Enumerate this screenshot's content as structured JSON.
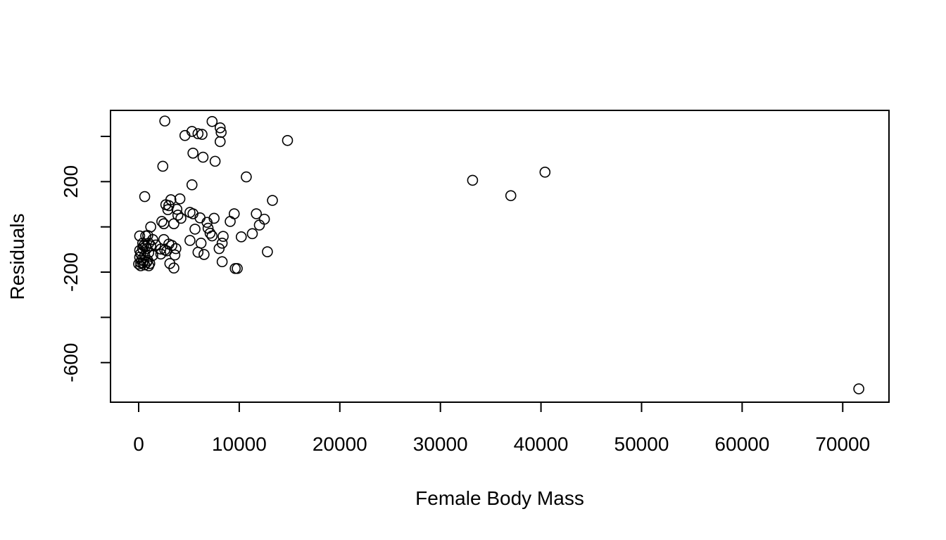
{
  "chart_data": {
    "type": "scatter",
    "title": "",
    "xlabel": "Female Body Mass",
    "ylabel": "Residuals",
    "xlim": [
      -2800,
      74600
    ],
    "ylim": [
      -775,
      515
    ],
    "x_ticks": [
      0,
      10000,
      20000,
      30000,
      40000,
      50000,
      60000,
      70000
    ],
    "x_tick_labels": [
      "0",
      "10000",
      "20000",
      "30000",
      "40000",
      "50000",
      "60000",
      "70000"
    ],
    "y_ticks": [
      -600,
      -400,
      -200,
      0,
      200,
      400
    ],
    "y_tick_labels": [
      "-600",
      "",
      "-200",
      "",
      "200",
      ""
    ],
    "grid": false,
    "legend": "none",
    "marker": "open-circle",
    "colors": {
      "marker": "#000000",
      "axis": "#000000",
      "background": "#ffffff"
    },
    "points": [
      [
        2600,
        468
      ],
      [
        7300,
        466
      ],
      [
        8100,
        438
      ],
      [
        5300,
        422
      ],
      [
        8200,
        418
      ],
      [
        5900,
        412
      ],
      [
        6300,
        409
      ],
      [
        4600,
        404
      ],
      [
        14800,
        382
      ],
      [
        8100,
        377
      ],
      [
        5400,
        326
      ],
      [
        6400,
        308
      ],
      [
        7600,
        290
      ],
      [
        2400,
        268
      ],
      [
        10700,
        221
      ],
      [
        5300,
        186
      ],
      [
        600,
        134
      ],
      [
        4100,
        124
      ],
      [
        13300,
        117
      ],
      [
        3200,
        120
      ],
      [
        2700,
        98
      ],
      [
        3000,
        94
      ],
      [
        2900,
        76
      ],
      [
        3800,
        78
      ],
      [
        5100,
        64
      ],
      [
        5400,
        58
      ],
      [
        9500,
        58
      ],
      [
        11700,
        58
      ],
      [
        3900,
        52
      ],
      [
        4200,
        38
      ],
      [
        6100,
        40
      ],
      [
        7500,
        38
      ],
      [
        12500,
        34
      ],
      [
        2300,
        24
      ],
      [
        9100,
        24
      ],
      [
        6800,
        20
      ],
      [
        2500,
        14
      ],
      [
        3500,
        14
      ],
      [
        12000,
        8
      ],
      [
        1200,
        0
      ],
      [
        5600,
        -10
      ],
      [
        6900,
        -6
      ],
      [
        7100,
        -28
      ],
      [
        11300,
        -30
      ],
      [
        100,
        -40
      ],
      [
        700,
        -40
      ],
      [
        900,
        -38
      ],
      [
        7300,
        -40
      ],
      [
        10200,
        -44
      ],
      [
        8400,
        -42
      ],
      [
        2500,
        -56
      ],
      [
        1400,
        -56
      ],
      [
        5100,
        -60
      ],
      [
        400,
        -72
      ],
      [
        1000,
        -72
      ],
      [
        3000,
        -76
      ],
      [
        6200,
        -72
      ],
      [
        8300,
        -72
      ],
      [
        500,
        -84
      ],
      [
        700,
        -86
      ],
      [
        1200,
        -84
      ],
      [
        1700,
        -80
      ],
      [
        3300,
        -82
      ],
      [
        8000,
        -96
      ],
      [
        3700,
        -96
      ],
      [
        400,
        -96
      ],
      [
        800,
        -96
      ],
      [
        2200,
        -98
      ],
      [
        100,
        -104
      ],
      [
        2800,
        -106
      ],
      [
        12800,
        -110
      ],
      [
        2600,
        -102
      ],
      [
        5900,
        -112
      ],
      [
        200,
        -118
      ],
      [
        1000,
        -114
      ],
      [
        600,
        -126
      ],
      [
        2200,
        -120
      ],
      [
        3600,
        -124
      ],
      [
        6500,
        -122
      ],
      [
        1400,
        -126
      ],
      [
        100,
        -134
      ],
      [
        300,
        -146
      ],
      [
        500,
        -150
      ],
      [
        900,
        -148
      ],
      [
        200,
        -158
      ],
      [
        400,
        -160
      ],
      [
        800,
        -156
      ],
      [
        1100,
        -162
      ],
      [
        3100,
        -162
      ],
      [
        8300,
        -154
      ],
      [
        0,
        -164
      ],
      [
        200,
        -172
      ],
      [
        600,
        -168
      ],
      [
        1000,
        -172
      ],
      [
        3500,
        -182
      ],
      [
        9600,
        -184
      ],
      [
        9800,
        -184
      ],
      [
        33200,
        206
      ],
      [
        37000,
        138
      ],
      [
        40400,
        242
      ],
      [
        71600,
        -716
      ]
    ]
  }
}
